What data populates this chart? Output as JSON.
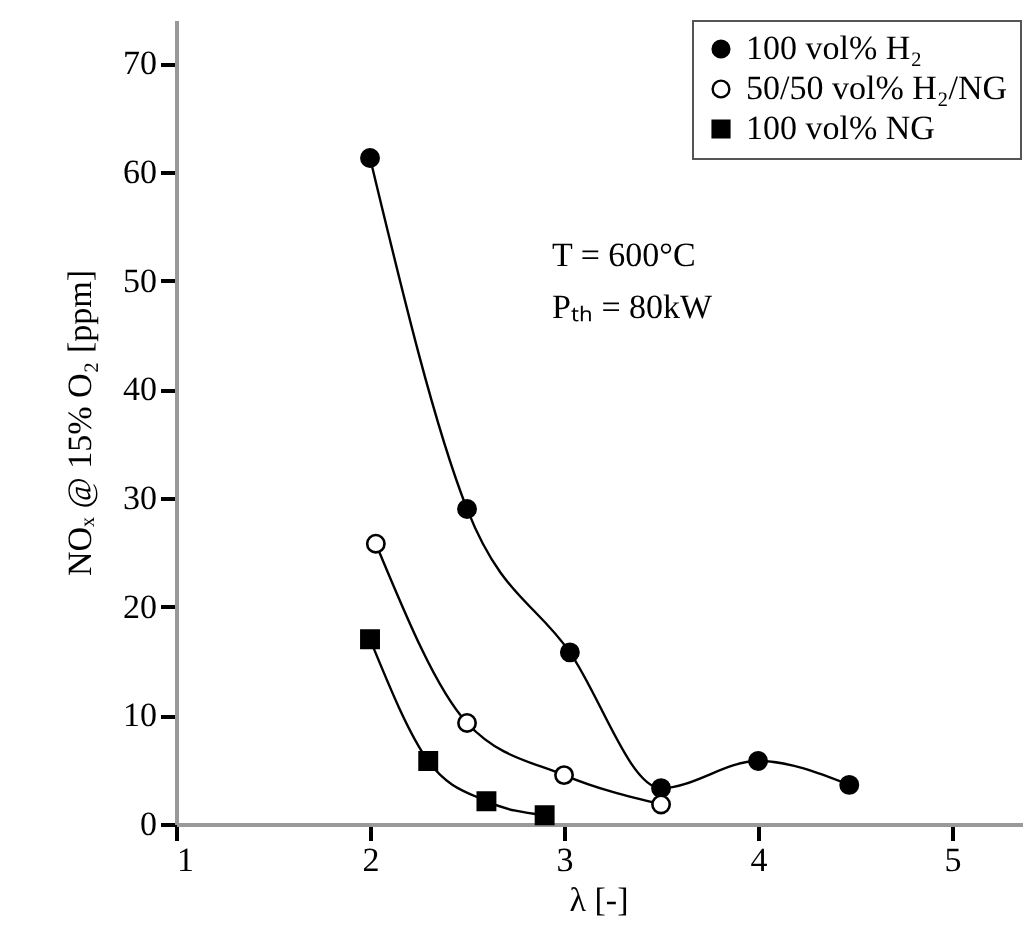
{
  "chart_data": {
    "type": "line",
    "xlabel": "λ [-]",
    "ylabel": "NOₓ @ 15% O₂ [ppm]",
    "xlim": [
      1,
      5.35
    ],
    "xticks": [
      1,
      2,
      3,
      4,
      5
    ],
    "ylim": [
      0,
      74
    ],
    "yticks": [
      0,
      10,
      20,
      30,
      40,
      50,
      60,
      70
    ],
    "grid": false,
    "legend": "top right",
    "line_style": "solid",
    "annotations": [
      "T = 600°C",
      "Pₜₕ = 80kW"
    ],
    "series": [
      {
        "name": "100 vol%    H₂",
        "color": "#000000",
        "marker": "circle",
        "x": [
          2,
          2.5,
          3.03,
          3.5,
          4,
          4.47
        ],
        "values": [
          61.3,
          29,
          15.8,
          3.3,
          5.8,
          3.6
        ]
      },
      {
        "name": "50/50 vol% H₂/NG",
        "color": "#ffffff",
        "marker": "circle",
        "x": [
          2.03,
          2.5,
          3.0,
          3.5
        ],
        "values": [
          25.8,
          9.3,
          4.5,
          1.8
        ]
      },
      {
        "name": "100 vol%    NG",
        "color": "#000000",
        "marker": "square",
        "x": [
          2,
          2.3,
          2.6,
          2.9
        ],
        "values": [
          17,
          5.8,
          2.1,
          0.8
        ]
      }
    ]
  }
}
